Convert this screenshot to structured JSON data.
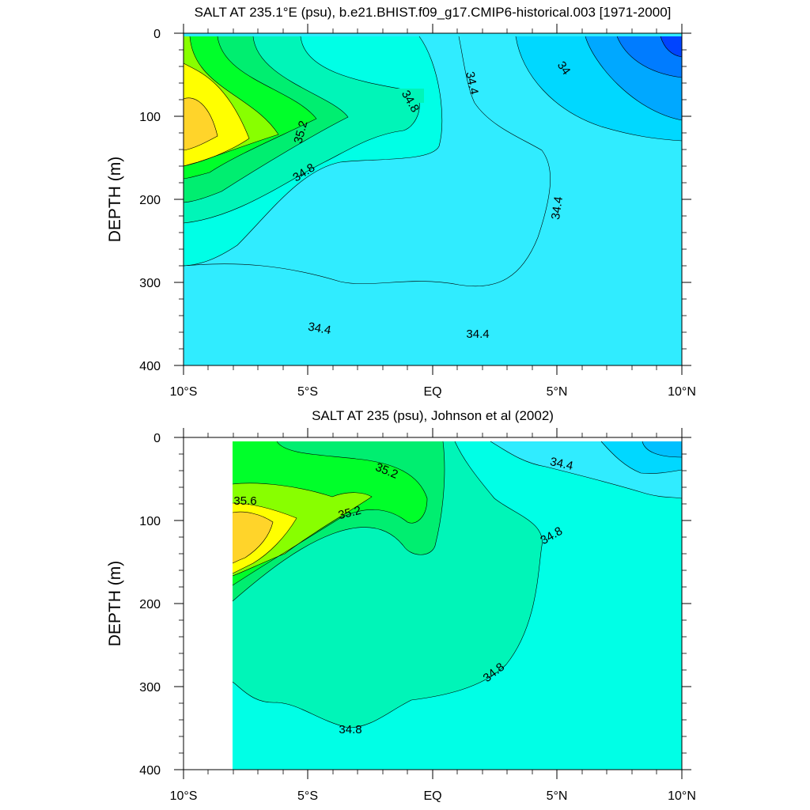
{
  "chart_data": [
    {
      "type": "contour",
      "title": "SALT AT 235.1°E (psu), b.e21.BHIST.f09_g17.CMIP6-historical.003 [1971-2000]",
      "ylabel": "DEPTH (m)",
      "xlim": [
        -10,
        10
      ],
      "ylim": [
        400,
        0
      ],
      "xticks": [
        -10,
        -5,
        0,
        5,
        10
      ],
      "xtick_labels": [
        "10°S",
        "5°S",
        "EQ",
        "5°N",
        "10°N"
      ],
      "yticks": [
        0,
        100,
        200,
        300,
        400
      ],
      "ytick_labels": [
        "0",
        "100",
        "200",
        "300",
        "400"
      ],
      "contour_labels": [
        "34.8",
        "34.4",
        "34",
        "35.2",
        "34.8",
        "34.4",
        "34.4",
        "34.4"
      ],
      "max_value_location": {
        "lat": -9.5,
        "depth": 125
      },
      "fill_colors": {
        "33.8": "#0044ff",
        "33.9": "#007cff",
        "34.0": "#00a8ff",
        "34.2": "#00d8ff",
        "34.4": "#30ecff",
        "34.6": "#00ffe6",
        "34.8": "#00f5b8",
        "35.0": "#00ee70",
        "35.2": "#00ff2a",
        "35.4": "#88ff00",
        "35.6": "#ffff00",
        "35.8": "#ffd42a"
      }
    },
    {
      "type": "contour",
      "title": "SALT AT 235 (psu), Johnson et al (2002)",
      "ylabel": "DEPTH (m)",
      "xlim": [
        -10,
        10
      ],
      "ylim": [
        400,
        0
      ],
      "data_xrange": [
        -8,
        10
      ],
      "xticks": [
        -10,
        -5,
        0,
        5,
        10
      ],
      "xtick_labels": [
        "10°S",
        "5°S",
        "EQ",
        "5°N",
        "10°N"
      ],
      "yticks": [
        0,
        100,
        200,
        300,
        400
      ],
      "ytick_labels": [
        "0",
        "100",
        "200",
        "300",
        "400"
      ],
      "contour_labels": [
        "35.2",
        "34.4",
        "35.6",
        "35.2",
        "34.8",
        "34.8",
        "34.8"
      ],
      "max_value_location": {
        "lat": -7.5,
        "depth": 105
      },
      "fill_colors": {
        "34.2": "#00d8ff",
        "34.4": "#30ecff",
        "34.6": "#00ffe6",
        "34.8": "#00f5b8",
        "35.0": "#00ee70",
        "35.2": "#00ff2a",
        "35.4": "#88ff00",
        "35.6": "#ffff00",
        "35.8": "#ffd42a"
      }
    }
  ]
}
